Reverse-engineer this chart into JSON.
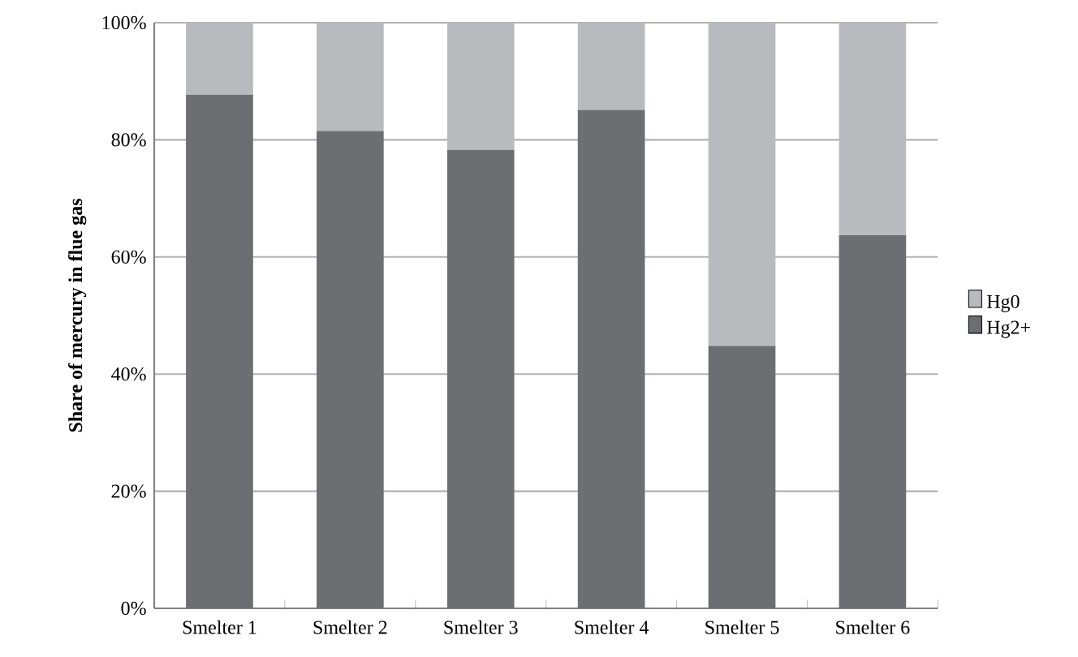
{
  "chart_data": {
    "type": "bar",
    "stacked": true,
    "ylabel": "Share of mercury in flue gas",
    "categories": [
      "Smelter 1",
      "Smelter 2",
      "Smelter 3",
      "Smelter 4",
      "Smelter 5",
      "Smelter 6"
    ],
    "series": [
      {
        "name": "Hg2+",
        "color": "#6d6e72",
        "values": [
          87.7,
          81.5,
          78.3,
          85.1,
          44.8,
          63.7
        ]
      },
      {
        "name": "Hg0",
        "color": "#b9babd",
        "values": [
          12.3,
          18.5,
          21.7,
          14.9,
          55.2,
          36.3
        ]
      }
    ],
    "ylim": [
      0,
      100
    ],
    "yticks": [
      {
        "value": 0,
        "label": "0%"
      },
      {
        "value": 20,
        "label": "20%"
      },
      {
        "value": 40,
        "label": "40%"
      },
      {
        "value": 60,
        "label": "60%"
      },
      {
        "value": 80,
        "label": "80%"
      },
      {
        "value": 100,
        "label": "100%"
      }
    ],
    "grid": "y",
    "legend": "right"
  }
}
